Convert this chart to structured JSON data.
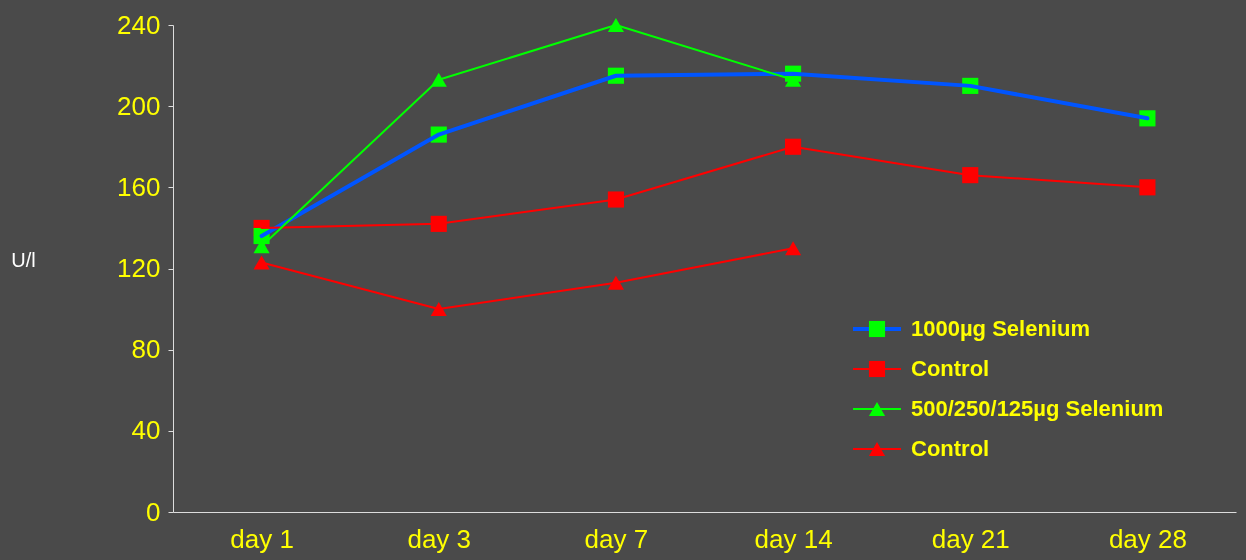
{
  "chart_data": {
    "type": "line",
    "ylabel": "U/l",
    "categories": [
      "day 1",
      "day 3",
      "day 7",
      "day 14",
      "day 21",
      "day 28"
    ],
    "ylim": [
      0,
      240
    ],
    "yticks": [
      0,
      40,
      80,
      120,
      160,
      200,
      240
    ],
    "grid": false,
    "legend": "bottom right",
    "line_style": "solid",
    "series": [
      {
        "name": "1000µg Selenium",
        "color": "#0055ff",
        "colors": [
          "#00ff00",
          "#00ff00",
          "#00ff00",
          "#00ff00",
          "#00ff00",
          "#00ff00"
        ],
        "marker": "square",
        "values": [
          136,
          186,
          215,
          216,
          210,
          194
        ]
      },
      {
        "name": "Control",
        "color": "#ff0000",
        "marker": "square",
        "values": [
          140,
          142,
          154,
          180,
          166,
          160
        ]
      },
      {
        "name": "500/250/125µg Selenium",
        "color": "#00ff00",
        "marker": "triangle",
        "values": [
          131,
          213,
          240,
          213,
          null,
          null
        ]
      },
      {
        "name": "Control",
        "color": "#ff0000",
        "marker": "triangle",
        "values": [
          123,
          100,
          113,
          130,
          null,
          null
        ]
      }
    ]
  }
}
